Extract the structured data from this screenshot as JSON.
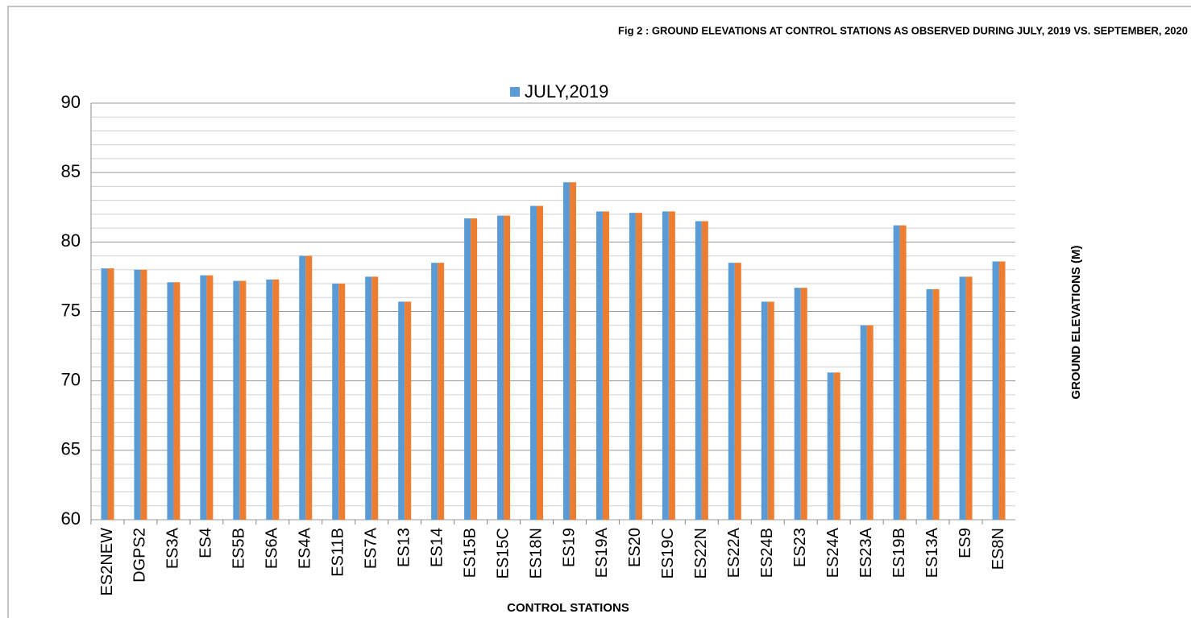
{
  "chart_data": {
    "type": "bar",
    "title": "Fig 2 : GROUND ELEVATIONS AT CONTROL STATIONS AS OBSERVED DURING JULY, 2019  VS. SEPTEMBER, 2020",
    "x_label": "CONTROL STATIONS",
    "y_label": "GROUND ELEVATIONS (M)",
    "categories": [
      "ES2NEW",
      "DGPS2",
      "ES3A",
      "ES4",
      "ES5B",
      "ES6A",
      "ES4A",
      "ES11B",
      "ES7A",
      "ES13",
      "ES14",
      "ES15B",
      "ES15C",
      "ES18N",
      "ES19",
      "ES19A",
      "ES20",
      "ES19C",
      "ES22N",
      "ES22A",
      "ES24B",
      "ES23",
      "ES24A",
      "ES23A",
      "ES19B",
      "ES13A",
      "ES9",
      "ES8N"
    ],
    "series": [
      {
        "name": "JULY,2019",
        "color": "#5b9bd5",
        "values": [
          78.1,
          78.0,
          77.1,
          77.6,
          77.2,
          77.3,
          79.0,
          77.0,
          77.5,
          75.7,
          78.5,
          81.7,
          81.9,
          82.6,
          84.3,
          82.2,
          82.1,
          82.2,
          81.5,
          78.5,
          75.7,
          76.7,
          70.6,
          74.0,
          81.2,
          76.6,
          77.5,
          78.6
        ]
      },
      {
        "color": "#ed7d31",
        "values": [
          78.1,
          78.0,
          77.1,
          77.6,
          77.2,
          77.3,
          79.0,
          77.0,
          77.5,
          75.7,
          78.5,
          81.7,
          81.9,
          82.6,
          84.3,
          82.2,
          82.1,
          82.2,
          81.5,
          78.5,
          75.7,
          76.7,
          70.6,
          74.0,
          81.2,
          76.6,
          77.5,
          78.6
        ]
      }
    ],
    "ylim": [
      60,
      90
    ],
    "yticks": [
      60,
      65,
      70,
      75,
      80,
      85,
      90
    ],
    "minor_yticks": [
      61,
      62,
      63,
      64,
      66,
      67,
      68,
      69,
      71,
      72,
      73,
      74,
      76,
      77,
      78,
      79,
      81,
      82,
      83,
      84,
      86,
      87,
      88,
      89
    ],
    "grid": true,
    "legend": "top"
  }
}
